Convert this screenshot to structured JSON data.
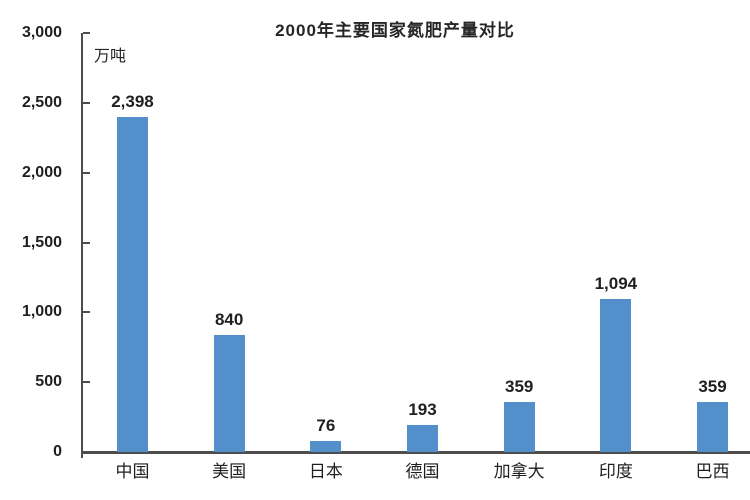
{
  "chart_data": {
    "type": "bar",
    "title": "2000年主要国家氮肥产量对比",
    "unit_label": "万吨",
    "categories": [
      "中国",
      "美国",
      "日本",
      "德国",
      "加拿大",
      "印度",
      "巴西"
    ],
    "values": [
      2398,
      840,
      76,
      193,
      359,
      1094,
      359
    ],
    "value_labels": [
      "2,398",
      "840",
      "76",
      "193",
      "359",
      "1,094",
      "359"
    ],
    "xlabel": "",
    "ylabel": "万吨",
    "ylim": [
      0,
      3000
    ],
    "y_ticks": [
      {
        "value": 0,
        "label": "0"
      },
      {
        "value": 500,
        "label": "500"
      },
      {
        "value": 1000,
        "label": "1,000"
      },
      {
        "value": 1500,
        "label": "1,500"
      },
      {
        "value": 2000,
        "label": "2,000"
      },
      {
        "value": 2500,
        "label": "2,500"
      },
      {
        "value": 3000,
        "label": "3,000"
      }
    ],
    "grid": false,
    "legend": "none",
    "colors": {
      "bar": "#538FCB",
      "axis": "#4D4D4D",
      "text": "#1F1F1F",
      "background": "#FFFFFF"
    }
  }
}
